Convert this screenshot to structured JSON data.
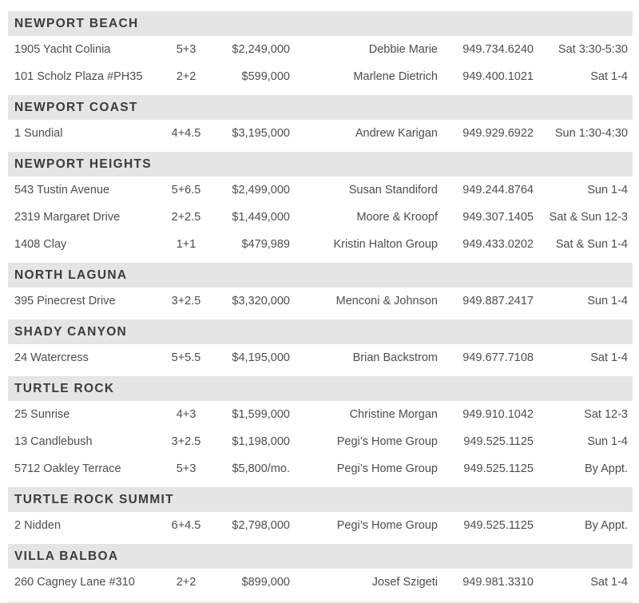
{
  "table": {
    "columns": [
      "address",
      "beds_baths",
      "price",
      "agent",
      "phone",
      "open_house_time"
    ],
    "sections": [
      {
        "name": "NEWPORT BEACH",
        "rows": [
          {
            "address": "1905 Yacht Colinia",
            "beds": "5+3",
            "price": "$2,249,000",
            "agent": "Debbie Marie",
            "phone": "949.734.6240",
            "time": "Sat 3:30-5:30"
          },
          {
            "address": "101 Scholz Plaza #PH35",
            "beds": "2+2",
            "price": "$599,000",
            "agent": "Marlene Dietrich",
            "phone": "949.400.1021",
            "time": "Sat 1-4"
          }
        ]
      },
      {
        "name": "NEWPORT COAST",
        "rows": [
          {
            "address": "1 Sundial",
            "beds": "4+4.5",
            "price": "$3,195,000",
            "agent": "Andrew Karigan",
            "phone": "949.929.6922",
            "time": "Sun 1:30-4:30"
          }
        ]
      },
      {
        "name": "NEWPORT HEIGHTS",
        "rows": [
          {
            "address": "543 Tustin Avenue",
            "beds": "5+6.5",
            "price": "$2,499,000",
            "agent": "Susan Standiford",
            "phone": "949.244.8764",
            "time": "Sun 1-4"
          },
          {
            "address": "2319 Margaret Drive",
            "beds": "2+2.5",
            "price": "$1,449,000",
            "agent": "Moore & Kroopf",
            "phone": "949.307.1405",
            "time": "Sat & Sun 12-3"
          },
          {
            "address": "1408 Clay",
            "beds": "1+1",
            "price": "$479,989",
            "agent": "Kristin Halton Group",
            "phone": "949.433.0202",
            "time": "Sat & Sun 1-4"
          }
        ]
      },
      {
        "name": "NORTH LAGUNA",
        "rows": [
          {
            "address": "395 Pinecrest Drive",
            "beds": "3+2.5",
            "price": "$3,320,000",
            "agent": "Menconi & Johnson",
            "phone": "949.887.2417",
            "time": "Sun 1-4"
          }
        ]
      },
      {
        "name": "SHADY CANYON",
        "rows": [
          {
            "address": "24 Watercress",
            "beds": "5+5.5",
            "price": "$4,195,000",
            "agent": "Brian Backstrom",
            "phone": "949.677.7108",
            "time": "Sat 1-4"
          }
        ]
      },
      {
        "name": "TURTLE ROCK",
        "rows": [
          {
            "address": "25 Sunrise",
            "beds": "4+3",
            "price": "$1,599,000",
            "agent": "Christine Morgan",
            "phone": "949.910.1042",
            "time": "Sat 12-3"
          },
          {
            "address": "13 Candlebush",
            "beds": "3+2.5",
            "price": "$1,198,000",
            "agent": "Pegi’s Home Group",
            "phone": "949.525.1125",
            "time": "Sun 1-4"
          },
          {
            "address": "5712 Oakley Terrace",
            "beds": "5+3",
            "price": "$5,800/mo.",
            "agent": "Pegi’s Home Group",
            "phone": "949.525.1125",
            "time": "By Appt."
          }
        ]
      },
      {
        "name": "TURTLE ROCK SUMMIT",
        "rows": [
          {
            "address": "2 Nidden",
            "beds": "6+4.5",
            "price": "$2,798,000",
            "agent": "Pegi’s Home Group",
            "phone": "949.525.1125",
            "time": "By Appt."
          }
        ]
      },
      {
        "name": "VILLA BALBOA",
        "rows": [
          {
            "address": "260 Cagney Lane #310",
            "beds": "2+2",
            "price": "$899,000",
            "agent": "Josef Szigeti",
            "phone": "949.981.3310",
            "time": "Sat 1-4"
          }
        ]
      }
    ]
  },
  "colors": {
    "section_bar": "#e4e6e3",
    "section_text": "#3b3b3b",
    "row_text": "#4d4d4d",
    "background": "#ffffff"
  }
}
